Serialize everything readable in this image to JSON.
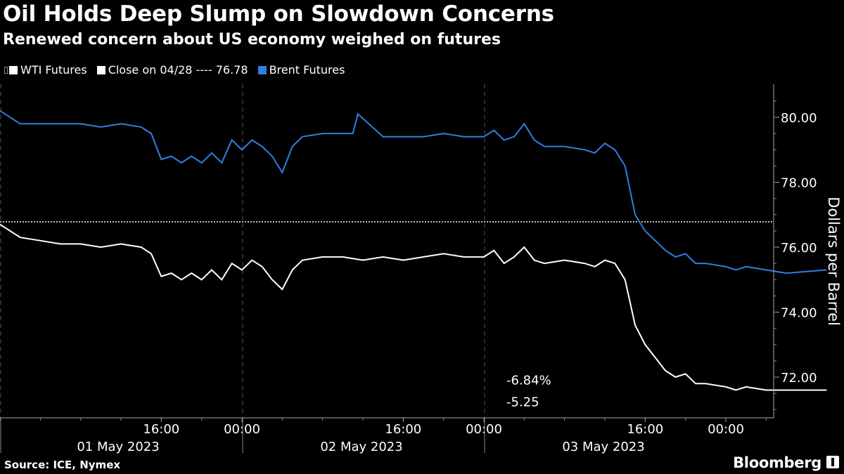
{
  "title": "Oil Holds Deep Slump on Slowdown Concerns",
  "subtitle": "Renewed concern about US economy weighed on futures",
  "legend": {
    "wti": "WTI Futures",
    "close": "Close on 04/28 ---- 76.78",
    "brent": "Brent Futures"
  },
  "source": "Source: ICE, Nymex",
  "brand": "Bloomberg",
  "colors": {
    "background": "#000000",
    "wti": "#ffffff",
    "brent": "#2f7fe0",
    "grid": "#555555",
    "reference": "#ffffff"
  },
  "chart_data": {
    "type": "line",
    "ylabel": "Dollars per Barrel",
    "ylim": [
      70.8,
      81.0
    ],
    "y_ticks": [
      "80.00",
      "78.00",
      "76.00",
      "74.00",
      "72.00"
    ],
    "x_ticks": [
      "16:00",
      "00:00",
      "16:00",
      "00:00",
      "16:00",
      "00:00"
    ],
    "date_labels": [
      "01 May 2023",
      "02 May 2023",
      "03 May 2023"
    ],
    "reference_line": {
      "label": "Close on 04/28",
      "value": 76.78
    },
    "annotations": {
      "wti_change_pct": "-6.84%",
      "wti_change": "-5.25"
    },
    "grid": "vertical dashed",
    "legend_position": "top-left",
    "series": [
      {
        "name": "WTI Futures",
        "points": [
          [
            "05-01 00:00",
            76.7
          ],
          [
            "05-01 02:00",
            76.3
          ],
          [
            "05-01 04:00",
            76.2
          ],
          [
            "05-01 06:00",
            76.1
          ],
          [
            "05-01 08:00",
            76.1
          ],
          [
            "05-01 10:00",
            76.0
          ],
          [
            "05-01 12:00",
            76.1
          ],
          [
            "05-01 14:00",
            76.0
          ],
          [
            "05-01 15:00",
            75.8
          ],
          [
            "05-01 16:00",
            75.1
          ],
          [
            "05-01 17:00",
            75.2
          ],
          [
            "05-01 18:00",
            75.0
          ],
          [
            "05-01 19:00",
            75.2
          ],
          [
            "05-01 20:00",
            75.0
          ],
          [
            "05-01 21:00",
            75.3
          ],
          [
            "05-01 22:00",
            75.0
          ],
          [
            "05-01 23:00",
            75.5
          ],
          [
            "05-02 00:00",
            75.3
          ],
          [
            "05-02 01:00",
            75.6
          ],
          [
            "05-02 02:00",
            75.4
          ],
          [
            "05-02 03:00",
            75.0
          ],
          [
            "05-02 04:00",
            74.7
          ],
          [
            "05-02 05:00",
            75.3
          ],
          [
            "05-02 06:00",
            75.6
          ],
          [
            "05-02 08:00",
            75.7
          ],
          [
            "05-02 10:00",
            75.7
          ],
          [
            "05-02 12:00",
            75.6
          ],
          [
            "05-02 14:00",
            75.7
          ],
          [
            "05-02 16:00",
            75.6
          ],
          [
            "05-02 18:00",
            75.7
          ],
          [
            "05-02 20:00",
            75.8
          ],
          [
            "05-02 22:00",
            75.7
          ],
          [
            "05-03 00:00",
            75.7
          ],
          [
            "05-03 01:00",
            75.9
          ],
          [
            "05-03 02:00",
            75.5
          ],
          [
            "05-03 03:00",
            75.7
          ],
          [
            "05-03 04:00",
            76.0
          ],
          [
            "05-03 05:00",
            75.6
          ],
          [
            "05-03 06:00",
            75.5
          ],
          [
            "05-03 08:00",
            75.6
          ],
          [
            "05-03 10:00",
            75.5
          ],
          [
            "05-03 11:00",
            75.4
          ],
          [
            "05-03 12:00",
            75.6
          ],
          [
            "05-03 13:00",
            75.5
          ],
          [
            "05-03 14:00",
            75.0
          ],
          [
            "05-03 15:00",
            73.6
          ],
          [
            "05-03 16:00",
            73.0
          ],
          [
            "05-03 17:00",
            72.6
          ],
          [
            "05-03 18:00",
            72.2
          ],
          [
            "05-03 19:00",
            72.0
          ],
          [
            "05-03 20:00",
            72.1
          ],
          [
            "05-03 21:00",
            71.8
          ],
          [
            "05-03 22:00",
            71.8
          ],
          [
            "05-04 00:00",
            71.7
          ],
          [
            "05-04 01:00",
            71.6
          ],
          [
            "05-04 02:00",
            71.7
          ],
          [
            "05-04 04:00",
            71.6
          ],
          [
            "05-04 06:00",
            71.6
          ],
          [
            "05-04 08:00",
            71.6
          ],
          [
            "05-04 10:00",
            71.6
          ]
        ]
      },
      {
        "name": "Brent Futures",
        "points": [
          [
            "05-01 00:00",
            80.2
          ],
          [
            "05-01 02:00",
            79.8
          ],
          [
            "05-01 04:00",
            79.8
          ],
          [
            "05-01 06:00",
            79.8
          ],
          [
            "05-01 08:00",
            79.8
          ],
          [
            "05-01 10:00",
            79.7
          ],
          [
            "05-01 12:00",
            79.8
          ],
          [
            "05-01 14:00",
            79.7
          ],
          [
            "05-01 15:00",
            79.5
          ],
          [
            "05-01 16:00",
            78.7
          ],
          [
            "05-01 17:00",
            78.8
          ],
          [
            "05-01 18:00",
            78.6
          ],
          [
            "05-01 19:00",
            78.8
          ],
          [
            "05-01 20:00",
            78.6
          ],
          [
            "05-01 21:00",
            78.9
          ],
          [
            "05-01 22:00",
            78.6
          ],
          [
            "05-01 23:00",
            79.3
          ],
          [
            "05-02 00:00",
            79.0
          ],
          [
            "05-02 01:00",
            79.3
          ],
          [
            "05-02 02:00",
            79.1
          ],
          [
            "05-02 03:00",
            78.8
          ],
          [
            "05-02 04:00",
            78.3
          ],
          [
            "05-02 05:00",
            79.1
          ],
          [
            "05-02 06:00",
            79.4
          ],
          [
            "05-02 08:00",
            79.5
          ],
          [
            "05-02 10:00",
            79.5
          ],
          [
            "05-02 11:00",
            79.5
          ],
          [
            "05-02 11:30",
            80.1
          ],
          [
            "05-02 14:00",
            79.4
          ],
          [
            "05-02 16:00",
            79.4
          ],
          [
            "05-02 18:00",
            79.4
          ],
          [
            "05-02 20:00",
            79.5
          ],
          [
            "05-02 22:00",
            79.4
          ],
          [
            "05-03 00:00",
            79.4
          ],
          [
            "05-03 01:00",
            79.6
          ],
          [
            "05-03 02:00",
            79.3
          ],
          [
            "05-03 03:00",
            79.4
          ],
          [
            "05-03 04:00",
            79.8
          ],
          [
            "05-03 05:00",
            79.3
          ],
          [
            "05-03 06:00",
            79.1
          ],
          [
            "05-03 08:00",
            79.1
          ],
          [
            "05-03 10:00",
            79.0
          ],
          [
            "05-03 11:00",
            78.9
          ],
          [
            "05-03 12:00",
            79.2
          ],
          [
            "05-03 13:00",
            79.0
          ],
          [
            "05-03 14:00",
            78.5
          ],
          [
            "05-03 15:00",
            77.0
          ],
          [
            "05-03 16:00",
            76.5
          ],
          [
            "05-03 17:00",
            76.2
          ],
          [
            "05-03 18:00",
            75.9
          ],
          [
            "05-03 19:00",
            75.7
          ],
          [
            "05-03 20:00",
            75.8
          ],
          [
            "05-03 21:00",
            75.5
          ],
          [
            "05-03 22:00",
            75.5
          ],
          [
            "05-04 00:00",
            75.4
          ],
          [
            "05-04 01:00",
            75.3
          ],
          [
            "05-04 02:00",
            75.4
          ],
          [
            "05-04 04:00",
            75.3
          ],
          [
            "05-04 06:00",
            75.2
          ],
          [
            "05-04 10:00",
            75.3
          ]
        ]
      }
    ]
  }
}
